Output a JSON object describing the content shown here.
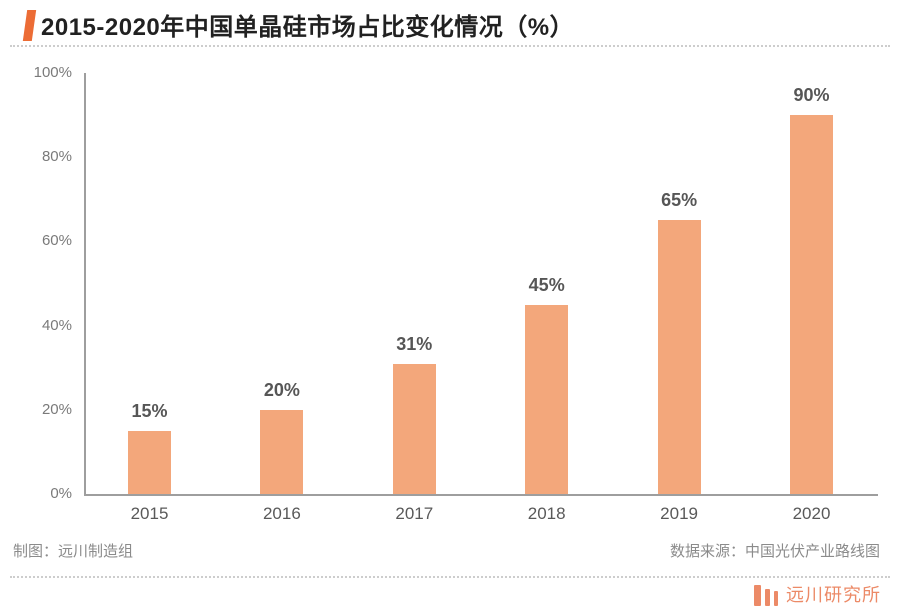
{
  "header": {
    "title": "2015-2020年中国单晶硅市场占比变化情况（%）"
  },
  "chart_data": {
    "type": "bar",
    "title": "2015-2020年中国单晶硅市场占比变化情况（%）",
    "categories": [
      "2015",
      "2016",
      "2017",
      "2018",
      "2019",
      "2020"
    ],
    "values": [
      15,
      20,
      31,
      45,
      65,
      90
    ],
    "value_labels": [
      "15%",
      "20%",
      "31%",
      "45%",
      "65%",
      "90%"
    ],
    "xlabel": "",
    "ylabel": "",
    "ylim": [
      0,
      100
    ],
    "y_tick_values": [
      0,
      20,
      40,
      60,
      80,
      100
    ],
    "y_tick_labels": [
      "0%",
      "20%",
      "40%",
      "60%",
      "80%",
      "100%"
    ],
    "grid": false,
    "legend_position": "none",
    "bar_color": "#F3A77B"
  },
  "captions": {
    "left": "制图：远川制造组",
    "right": "数据来源：中国光伏产业路线图"
  },
  "brand": {
    "name": "远川研究所",
    "logo": "three-bars-icon",
    "color": "#EC8A67"
  },
  "colors": {
    "accent": "#EC6C35",
    "bar": "#F3A77B",
    "axis": "#9E9E9E",
    "title_text": "#212121",
    "tick_text": "#7A7A7A",
    "value_label_text": "#565656",
    "caption_text": "#8B8B8B",
    "dotted_rule": "#CDCDCD"
  }
}
